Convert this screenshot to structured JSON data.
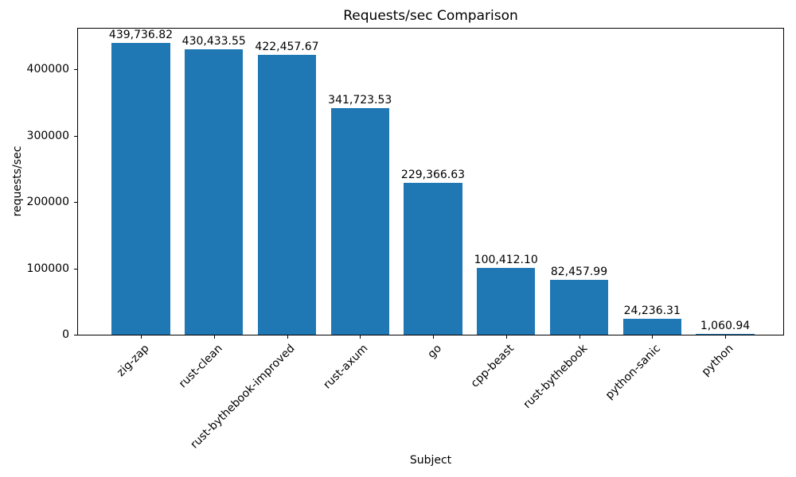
{
  "chart_data": {
    "type": "bar",
    "title": "Requests/sec Comparison",
    "xlabel": "Subject",
    "ylabel": "requests/sec",
    "categories": [
      "zig-zap",
      "rust-clean",
      "rust-bythebook-improved",
      "rust-axum",
      "go",
      "cpp-beast",
      "rust-bythebook",
      "python-sanic",
      "python"
    ],
    "values": [
      439736.82,
      430433.55,
      422457.67,
      341723.53,
      229366.63,
      100412.1,
      82457.99,
      24236.31,
      1060.94
    ],
    "value_labels": [
      "439,736.82",
      "430,433.55",
      "422,457.67",
      "341,723.53",
      "229,366.63",
      "100,412.10",
      "82,457.99",
      "24,236.31",
      "1,060.94"
    ],
    "y_ticks": [
      0,
      100000,
      200000,
      300000,
      400000
    ],
    "ylim": [
      0,
      461723.66
    ],
    "bar_color": "#1f77b4",
    "grid": false,
    "legend": null,
    "x_tick_rotation_deg": 45
  }
}
